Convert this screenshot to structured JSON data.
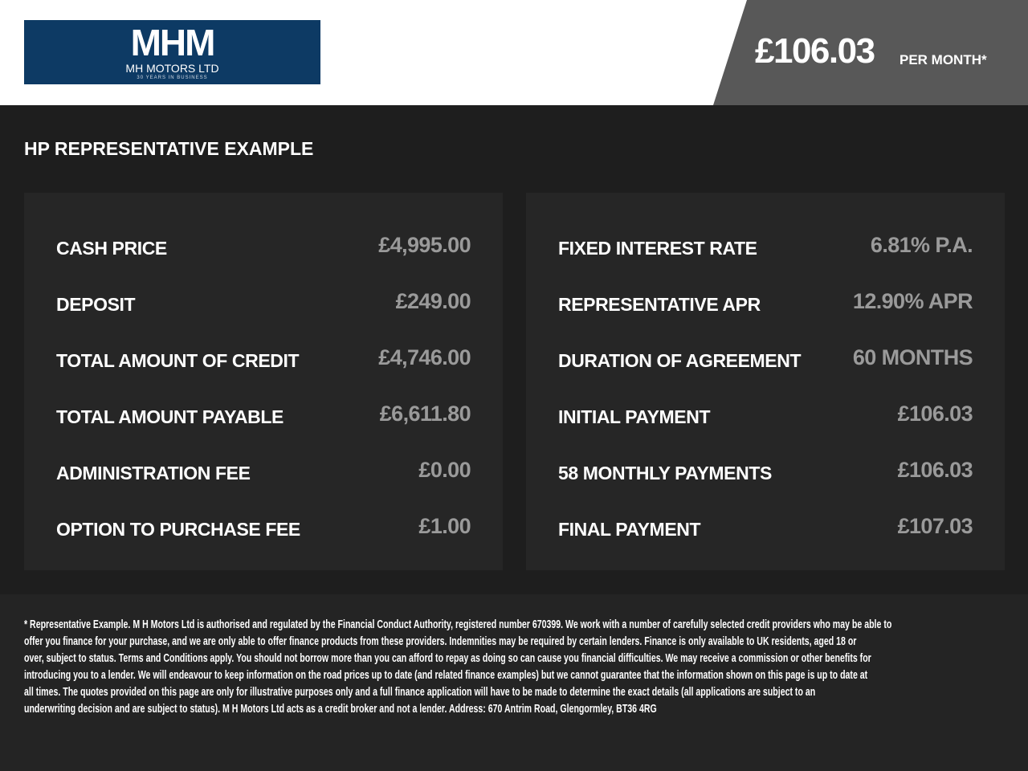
{
  "header": {
    "logo_text": "MHM",
    "logo_name": "MH MOTORS LTD",
    "logo_tagline": "30 YEARS IN BUSINESS",
    "price": "£106.03",
    "per_month": "PER MONTH*"
  },
  "heading": "HP REPRESENTATIVE EXAMPLE",
  "left": [
    {
      "label": "CASH PRICE",
      "value": "£4,995.00"
    },
    {
      "label": "DEPOSIT",
      "value": "£249.00"
    },
    {
      "label": "TOTAL AMOUNT OF CREDIT",
      "value": "£4,746.00"
    },
    {
      "label": "TOTAL AMOUNT PAYABLE",
      "value": "£6,611.80"
    },
    {
      "label": "ADMINISTRATION FEE",
      "value": "£0.00"
    },
    {
      "label": "OPTION TO PURCHASE FEE",
      "value": "£1.00"
    }
  ],
  "right": [
    {
      "label": "FIXED INTEREST RATE",
      "value": "6.81% P.A."
    },
    {
      "label": "REPRESENTATIVE APR",
      "value": "12.90% APR"
    },
    {
      "label": "DURATION OF AGREEMENT",
      "value": "60 MONTHS"
    },
    {
      "label": "INITIAL PAYMENT",
      "value": "£106.03"
    },
    {
      "label": "58 MONTHLY PAYMENTS",
      "value": "£106.03"
    },
    {
      "label": "FINAL PAYMENT",
      "value": "£107.03"
    }
  ],
  "disclaimer": [
    "* Representative Example. M H Motors Ltd is authorised and regulated by the Financial Conduct Authority, registered number 670399. We work with a number of carefully selected credit providers who may be able to",
    "offer you finance for your purchase, and we are only able to offer finance products from these providers. Indemnities may be required by certain lenders. Finance is only available to UK residents, aged 18 or",
    "over, subject to status. Terms and Conditions apply. You should not borrow more than you can afford to repay as doing so can cause you financial difficulties. We may receive a commission or other benefits for",
    "introducing you to a lender. We will endeavour to keep information on the road prices up to date (and related finance examples) but we cannot guarantee that the information shown on this page is up to date at",
    "all times. The quotes provided on this page are only for illustrative purposes only and a full finance application will have to be made to determine the exact details (all applications are subject to an",
    "underwriting decision and are subject to status). M H Motors Ltd acts as a credit broker and not a lender. Address: 670 Antrim Road, Glengormley, BT36 4RG"
  ]
}
